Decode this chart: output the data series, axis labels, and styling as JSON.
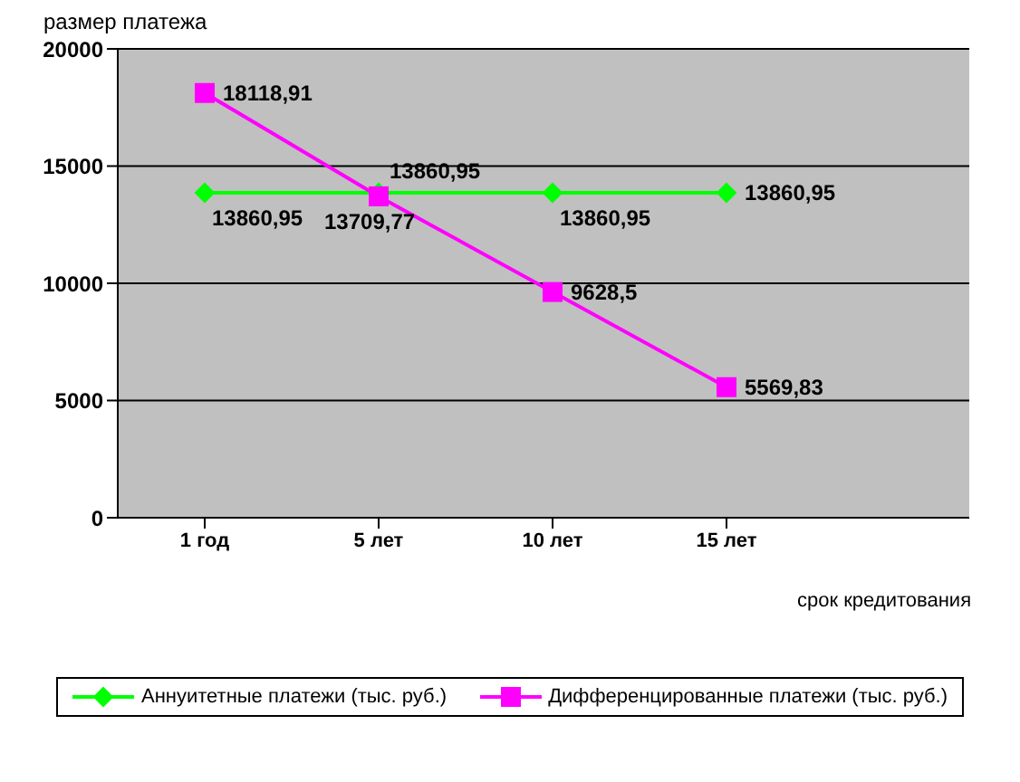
{
  "chart_data": {
    "type": "line",
    "ylabel": "размер платежа",
    "xlabel": "срок кредитования",
    "categories": [
      "1 год",
      "5 лет",
      "10 лет",
      "15 лет"
    ],
    "series": [
      {
        "name": "Аннуитетные платежи (тыс. руб.)",
        "color": "#00ff00",
        "marker": "diamond",
        "values": [
          13860.95,
          13860.95,
          13860.95,
          13860.95
        ],
        "value_labels": [
          "13860,95",
          "13860,95",
          "13860,95",
          "13860,95"
        ]
      },
      {
        "name": "Дифференцированные платежи  (тыс. руб.)",
        "color": "#ff00ff",
        "marker": "square",
        "values": [
          18118.91,
          13709.77,
          9628.5,
          5569.83
        ],
        "value_labels": [
          "18118,91",
          "13709,77",
          "9628,5",
          "5569,83"
        ]
      }
    ],
    "ylim": [
      0,
      20000
    ],
    "yticks": [
      0,
      5000,
      10000,
      15000,
      20000
    ],
    "grid": "y",
    "legend": "bottom"
  }
}
